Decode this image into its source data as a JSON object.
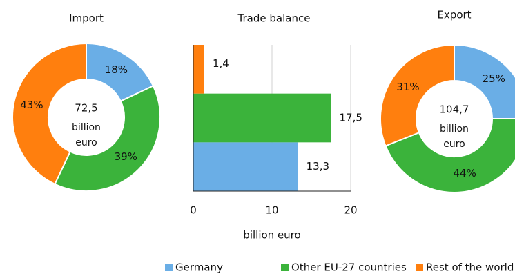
{
  "chart_data": [
    {
      "type": "donut",
      "title": "Import",
      "categories": [
        "Germany",
        "Other EU-27 countries",
        "Rest of the world"
      ],
      "values": [
        18,
        39,
        43
      ],
      "value_labels": [
        "18%",
        "39%",
        "43%"
      ],
      "colors": [
        "#6aaee6",
        "#3bb33b",
        "#ff7f0e"
      ],
      "center_label": [
        "72,5",
        "billion",
        "euro"
      ]
    },
    {
      "type": "hbar",
      "title": "Trade balance",
      "categories": [
        "Germany",
        "Other EU-27 countries",
        "Rest of the world"
      ],
      "values": [
        13.3,
        17.5,
        1.4
      ],
      "value_labels": [
        "13,3",
        "17,5",
        "1,4"
      ],
      "colors": [
        "#6aaee6",
        "#3bb33b",
        "#ff7f0e"
      ],
      "xlim": [
        0,
        20
      ],
      "xticks": [
        0,
        10,
        20
      ],
      "grid": true,
      "xlabel": "billion euro"
    },
    {
      "type": "donut",
      "title": "Export",
      "categories": [
        "Germany",
        "Other EU-27 countries",
        "Rest of the world"
      ],
      "values": [
        25,
        44,
        31
      ],
      "value_labels": [
        "25%",
        "44%",
        "31%"
      ],
      "colors": [
        "#6aaee6",
        "#3bb33b",
        "#ff7f0e"
      ],
      "center_label": [
        "104,7",
        "billion",
        "euro"
      ]
    }
  ]
}
